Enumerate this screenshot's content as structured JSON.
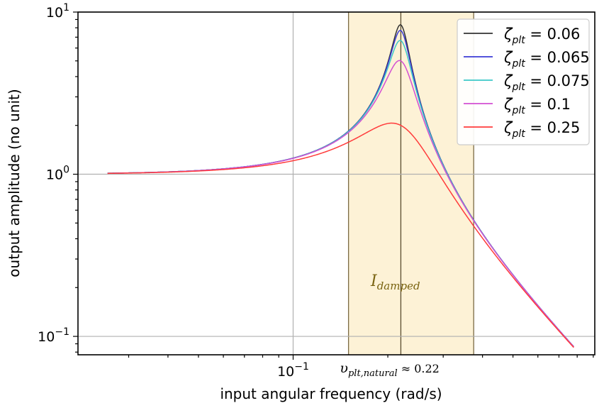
{
  "chart_data": {
    "type": "line",
    "xscale": "log",
    "yscale": "log",
    "xlim": [
      0.0207,
      0.91
    ],
    "ylim": [
      0.077,
      10
    ],
    "xlabel": "input angular frequency (rad/s)",
    "ylabel": "output amplitude (no unit)",
    "xticks": [
      {
        "value": 0.1,
        "base": "10",
        "exp": "−1"
      }
    ],
    "yticks": [
      {
        "value": 0.1,
        "base": "10",
        "exp": "−1"
      },
      {
        "value": 1,
        "base": "10",
        "exp": "0"
      },
      {
        "value": 10,
        "base": "10",
        "exp": "1"
      }
    ],
    "grid": true,
    "legend_position": "top-right",
    "natural_frequency": 0.22,
    "damped_band": [
      0.15,
      0.375
    ],
    "band_color": "#fdf2d6",
    "series": [
      {
        "name": "0.06",
        "zeta": 0.06,
        "color": "#333333"
      },
      {
        "name": "0.065",
        "zeta": 0.065,
        "color": "#3b3bd6"
      },
      {
        "name": "0.075",
        "zeta": 0.075,
        "color": "#3cc8c8"
      },
      {
        "name": "0.1",
        "zeta": 0.1,
        "color": "#d34fd3"
      },
      {
        "name": "0.25",
        "zeta": 0.25,
        "color": "#ff3b3b"
      }
    ],
    "legend_symbol": "ζ",
    "legend_subscript": "plt",
    "x_range": [
      0.0257,
      0.78
    ],
    "annotations": {
      "band_label_main": "I",
      "band_label_sub": "damped",
      "natural_symbol": "υ",
      "natural_sub": "plt,natural",
      "natural_text": "≈ 0.22"
    }
  }
}
